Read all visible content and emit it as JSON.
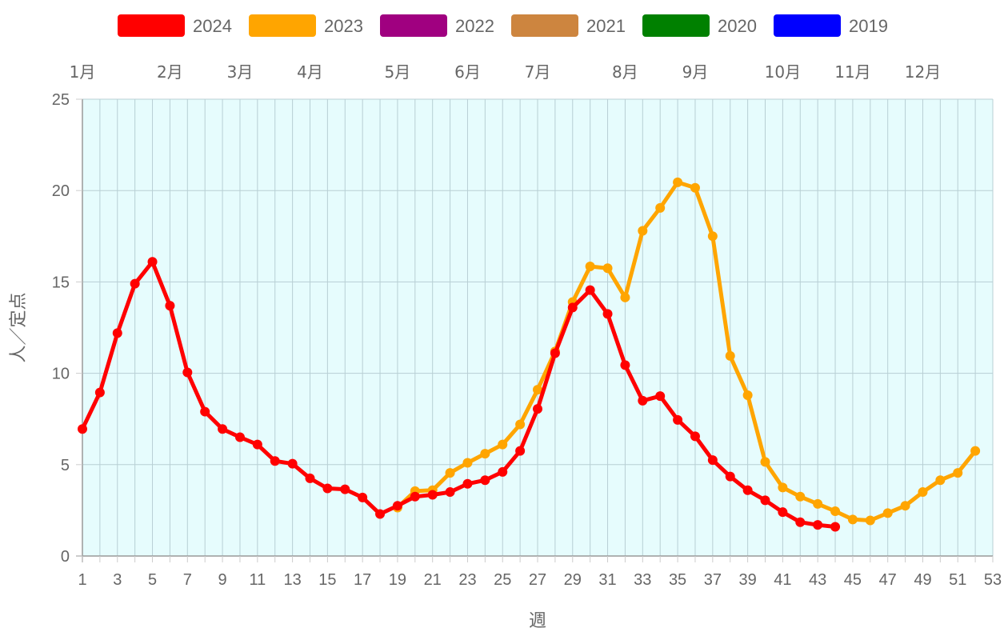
{
  "chart_data": {
    "type": "line",
    "xlabel": "週",
    "ylabel": "人／定点",
    "xlim": [
      1,
      53
    ],
    "ylim": [
      0,
      25
    ],
    "x_ticks": [
      1,
      3,
      5,
      7,
      9,
      11,
      13,
      15,
      17,
      19,
      21,
      23,
      25,
      27,
      29,
      31,
      33,
      35,
      37,
      39,
      41,
      43,
      45,
      47,
      49,
      51,
      53
    ],
    "y_ticks": [
      0,
      5,
      10,
      15,
      20,
      25
    ],
    "grid": true,
    "plot_background": "#e6fcfd",
    "legend_position": "top",
    "months": [
      {
        "label": "1月",
        "week": 1
      },
      {
        "label": "2月",
        "week": 6
      },
      {
        "label": "3月",
        "week": 10
      },
      {
        "label": "4月",
        "week": 14
      },
      {
        "label": "5月",
        "week": 19
      },
      {
        "label": "6月",
        "week": 23
      },
      {
        "label": "7月",
        "week": 27
      },
      {
        "label": "8月",
        "week": 32
      },
      {
        "label": "9月",
        "week": 36
      },
      {
        "label": "10月",
        "week": 41
      },
      {
        "label": "11月",
        "week": 45
      },
      {
        "label": "12月",
        "week": 49
      }
    ],
    "series": [
      {
        "name": "2024",
        "color": "#ff0000",
        "x": [
          1,
          2,
          3,
          4,
          5,
          6,
          7,
          8,
          9,
          10,
          11,
          12,
          13,
          14,
          15,
          16,
          17,
          18,
          19,
          20,
          21,
          22,
          23,
          24,
          25,
          26,
          27,
          28,
          29,
          30,
          31,
          32,
          33,
          34,
          35,
          36,
          37,
          38,
          39,
          40,
          41,
          42,
          43,
          44
        ],
        "values": [
          6.95,
          8.95,
          12.2,
          14.9,
          16.1,
          13.7,
          10.05,
          7.9,
          6.95,
          6.5,
          6.1,
          5.2,
          5.05,
          4.25,
          3.7,
          3.65,
          3.2,
          2.3,
          2.75,
          3.25,
          3.35,
          3.5,
          3.95,
          4.15,
          4.6,
          5.75,
          8.05,
          11.1,
          13.6,
          14.55,
          13.25,
          10.45,
          8.5,
          8.75,
          7.45,
          6.55,
          5.25,
          4.35,
          3.6,
          3.05,
          2.4,
          1.85,
          1.7,
          1.6
        ]
      },
      {
        "name": "2023",
        "color": "#ffa500",
        "x": [
          19,
          20,
          21,
          22,
          23,
          24,
          25,
          26,
          27,
          28,
          29,
          30,
          31,
          32,
          33,
          34,
          35,
          36,
          37,
          38,
          39,
          40,
          41,
          42,
          43,
          44,
          45,
          46,
          47,
          48,
          49,
          50,
          51,
          52
        ],
        "values": [
          2.65,
          3.55,
          3.6,
          4.55,
          5.1,
          5.6,
          6.1,
          7.2,
          9.1,
          11.2,
          13.9,
          15.85,
          15.75,
          14.15,
          17.8,
          19.05,
          20.45,
          20.15,
          17.5,
          10.95,
          8.8,
          5.15,
          3.75,
          3.25,
          2.85,
          2.45,
          2.0,
          1.95,
          2.35,
          2.75,
          3.5,
          4.15,
          4.55,
          5.75
        ]
      },
      {
        "name": "2022",
        "color": "#a00080",
        "x": [],
        "values": []
      },
      {
        "name": "2021",
        "color": "#cd853f",
        "x": [],
        "values": []
      },
      {
        "name": "2020",
        "color": "#008000",
        "x": [],
        "values": []
      },
      {
        "name": "2019",
        "color": "#0000ff",
        "x": [],
        "values": []
      }
    ]
  }
}
